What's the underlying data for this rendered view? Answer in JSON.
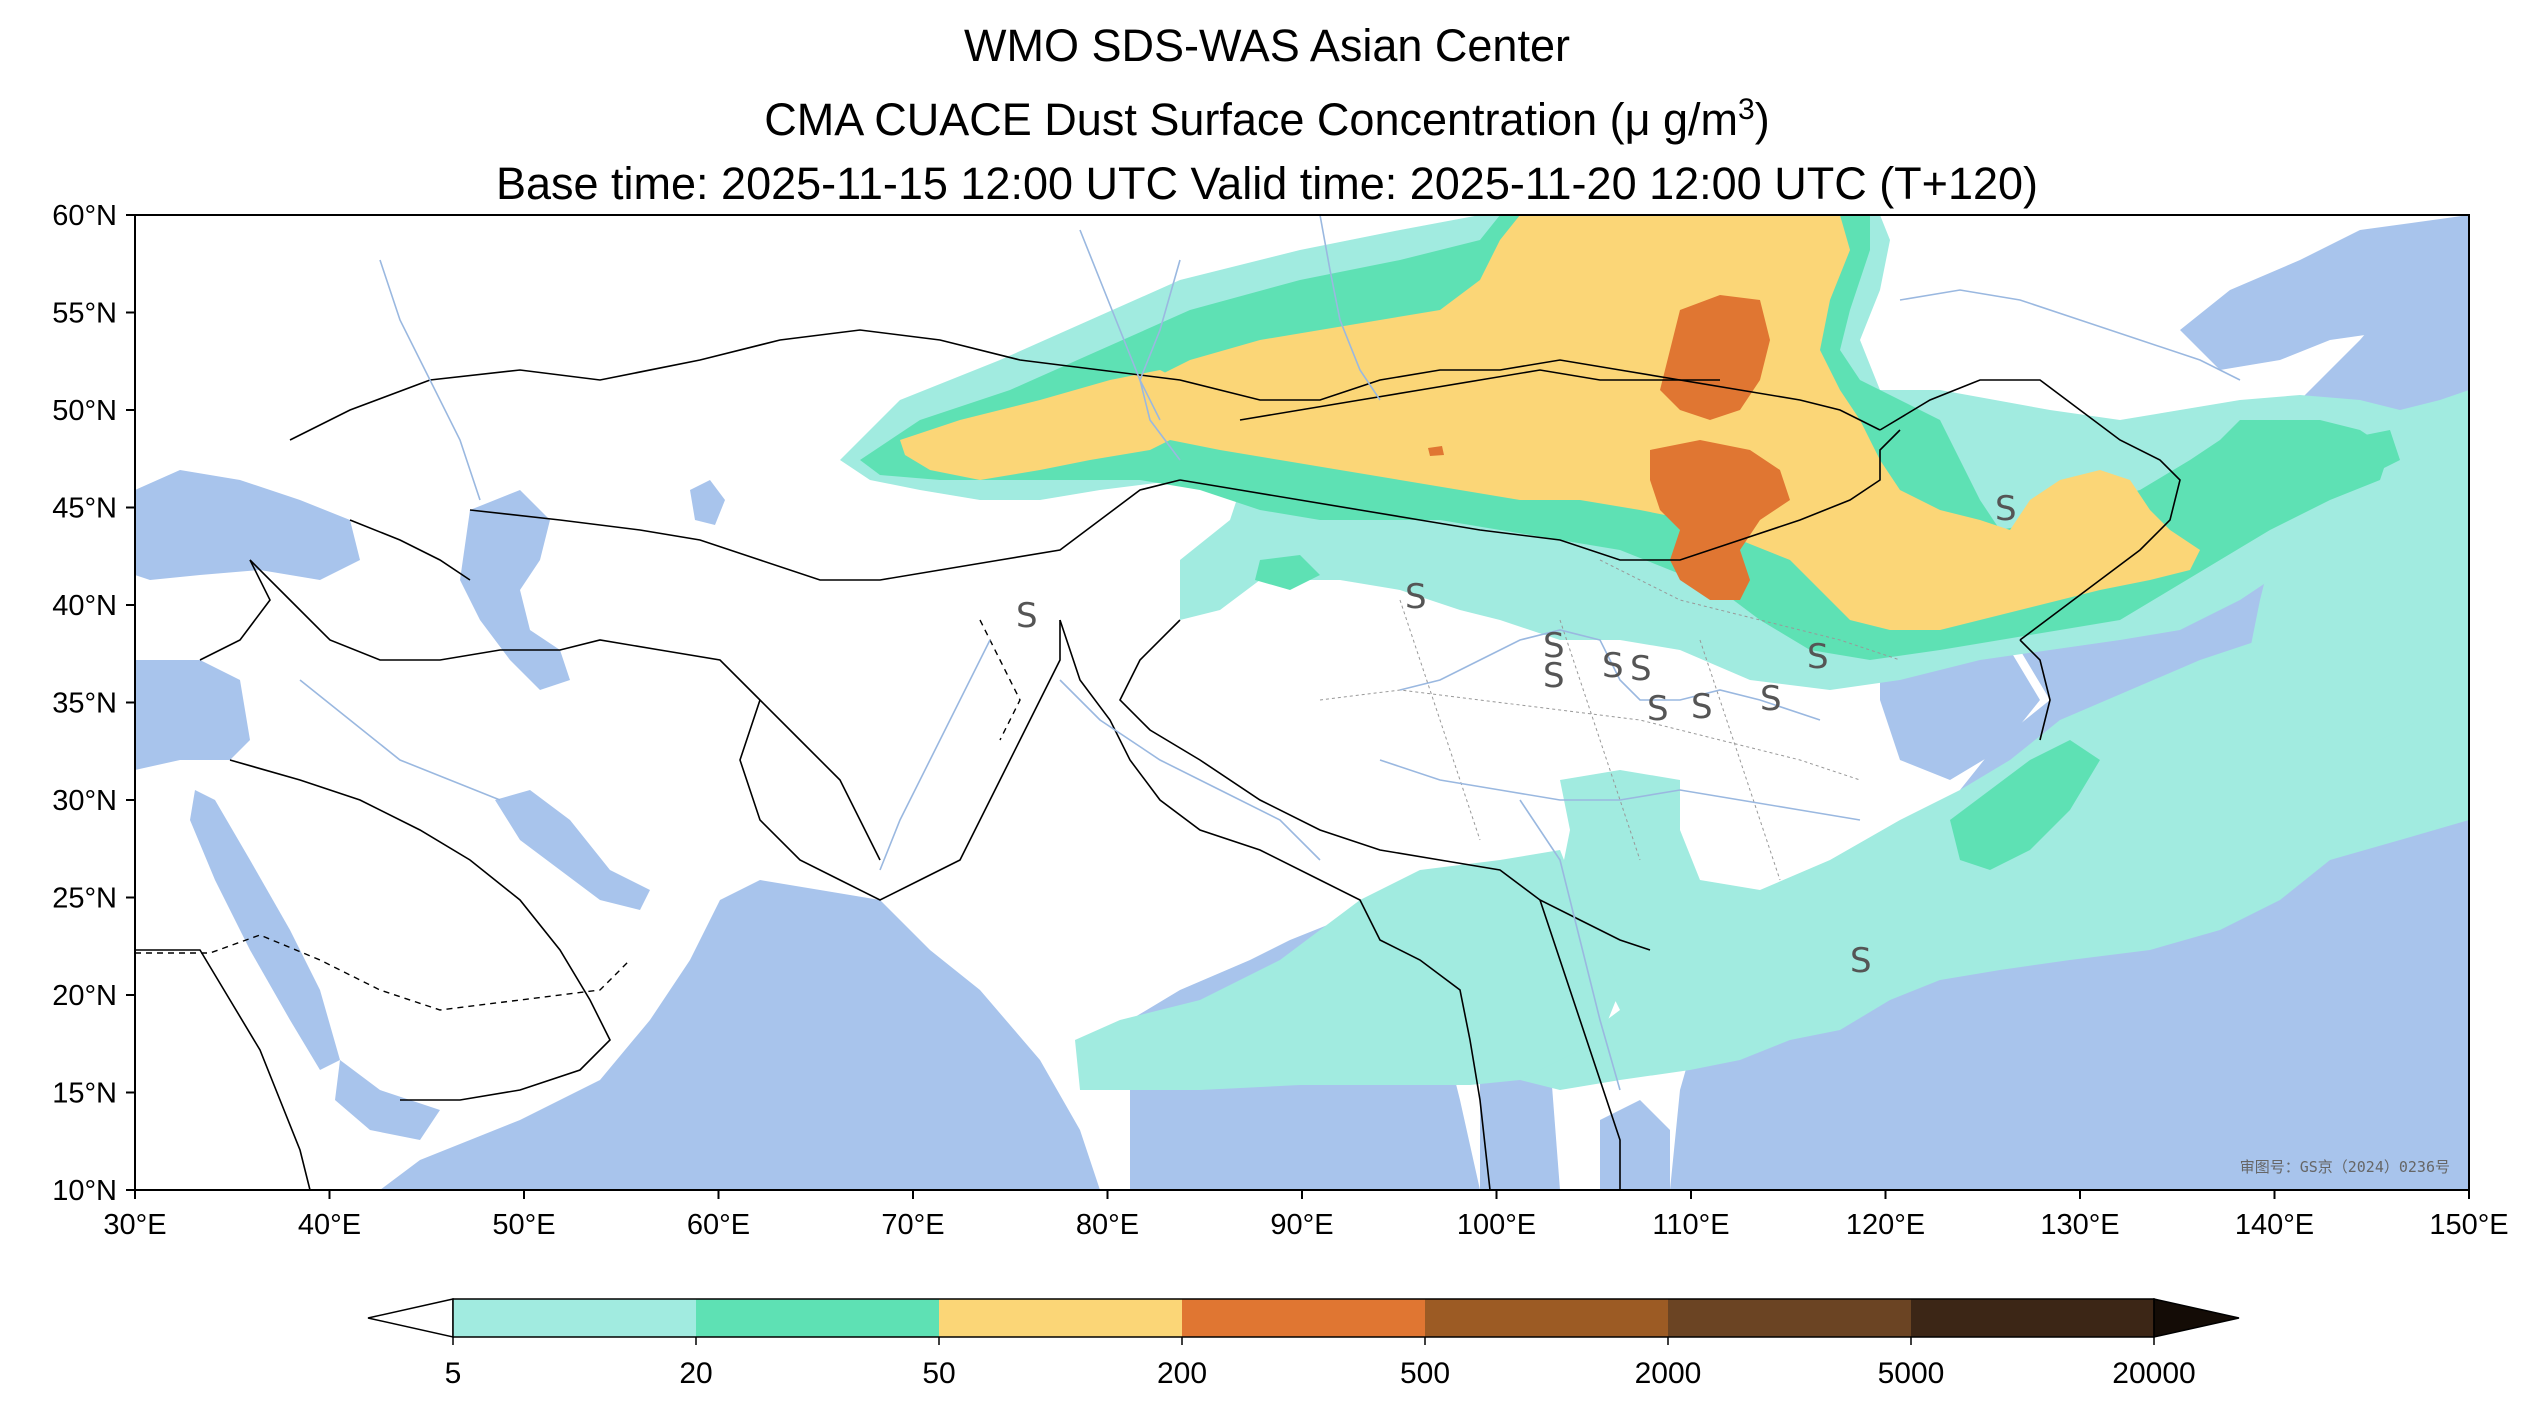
{
  "title": {
    "line1": "WMO SDS-WAS Asian Center",
    "line2_prefix": "CMA CUACE Dust Surface Concentration (",
    "line2_unit": "μ g/m",
    "line2_sup": "3",
    "line2_suffix": ")",
    "line3": "Base time: 2025-11-15 12:00 UTC Valid time: 2025-11-20 12:00 UTC (T+120)"
  },
  "map": {
    "lon_range": [
      30,
      150
    ],
    "lat_range": [
      10,
      60
    ],
    "lon_ticks": [
      "30°E",
      "40°E",
      "50°E",
      "60°E",
      "70°E",
      "80°E",
      "90°E",
      "100°E",
      "110°E",
      "120°E",
      "130°E",
      "140°E",
      "150°E"
    ],
    "lat_ticks": [
      "60°N",
      "55°N",
      "50°N",
      "45°N",
      "40°N",
      "35°N",
      "30°N",
      "25°N",
      "20°N",
      "15°N",
      "10°N"
    ],
    "credit": "审图号：GS京（2024）0236号",
    "dust_storm_symbol": "S",
    "colors": {
      "ocean": "#a8c4ec",
      "land": "#ffffff",
      "border": "#000000",
      "river": "#9ab8e0"
    }
  },
  "colorbar": {
    "levels": [
      "5",
      "20",
      "50",
      "200",
      "500",
      "2000",
      "5000",
      "20000"
    ],
    "colors": [
      "#a1ebe0",
      "#5ee1b4",
      "#fbd677",
      "#e07632",
      "#9c5b24",
      "#6b4423",
      "#3c2616"
    ],
    "under_color": "#ffffff",
    "over_color": "#140c06"
  }
}
